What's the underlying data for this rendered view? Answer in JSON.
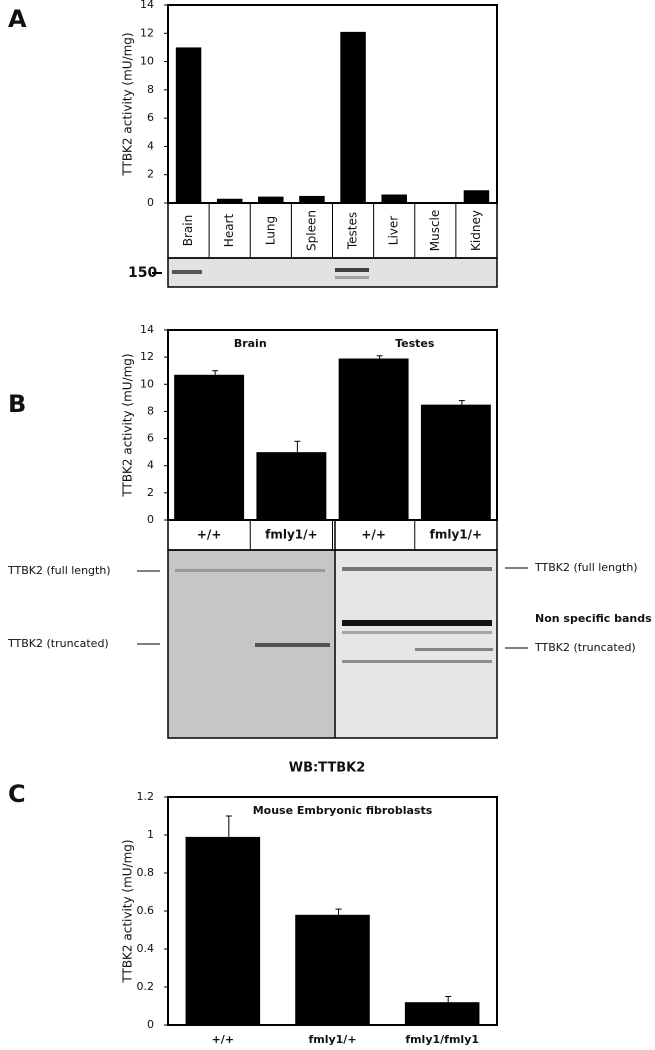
{
  "panel_labels": [
    "A",
    "B",
    "C"
  ],
  "chart_data": [
    {
      "type": "bar",
      "y_label": "TTBK2 activity (mU/mg)",
      "categories": [
        "Brain",
        "Heart",
        "Lung",
        "Spleen",
        "Testes",
        "Liver",
        "Muscle",
        "Kidney"
      ],
      "values": [
        11,
        0.3,
        0.45,
        0.5,
        12.1,
        0.6,
        0,
        0.9
      ],
      "color": "#000000",
      "ylim": [
        0,
        14
      ],
      "yticks": [
        0,
        2,
        4,
        6,
        8,
        10,
        12,
        14
      ]
    },
    {
      "type": "bar",
      "y_label": "TTBK2 activity (mU/mg)",
      "groups": [
        "Brain",
        "Testes"
      ],
      "categories": [
        "+/+",
        "fmly1/+",
        "+/+",
        "fmly1/+"
      ],
      "values": [
        10.7,
        5.0,
        11.9,
        8.5
      ],
      "errors": [
        0.3,
        0.8,
        0.2,
        0.3
      ],
      "color": "#000000",
      "ylim": [
        0,
        14
      ],
      "yticks": [
        0,
        2,
        4,
        6,
        8,
        10,
        12,
        14
      ]
    },
    {
      "type": "bar",
      "title": "Mouse Embryonic fibroblasts",
      "y_label": "TTBK2 activity (mU/mg)",
      "categories": [
        "+/+",
        "fmly1/+",
        "fmly1/fmly1"
      ],
      "values": [
        0.99,
        0.58,
        0.12
      ],
      "errors": [
        0.11,
        0.03,
        0.03
      ],
      "color": "#000000",
      "ylim": [
        0,
        1.2
      ],
      "yticks": [
        0,
        0.2,
        0.4,
        0.6,
        0.8,
        1,
        1.2
      ]
    }
  ],
  "blot_a": {
    "marker": "150"
  },
  "blot_b": {
    "left_labels": [
      "TTBK2 (full length)",
      "TTBK2 (truncated)"
    ],
    "right_labels": [
      "TTBK2 (full length)",
      "Non specific bands",
      "TTBK2 (truncated)"
    ],
    "caption": "WB:TTBK2"
  }
}
